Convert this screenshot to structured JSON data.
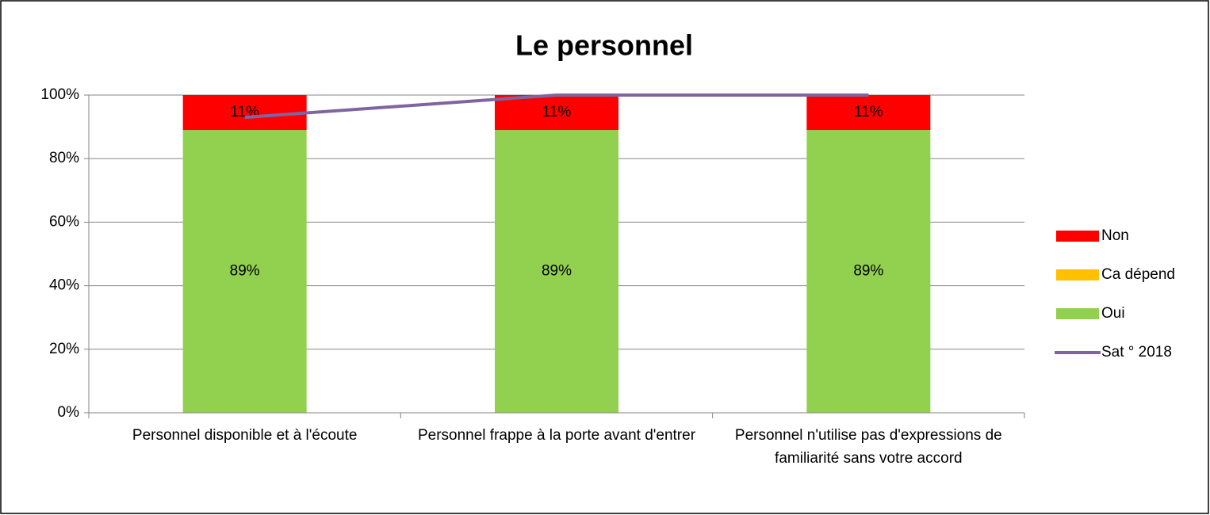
{
  "chart_data": {
    "type": "bar",
    "stacked": true,
    "title": "Le personnel",
    "categories": [
      "Personnel disponible et à l'écoute",
      "Personnel frappe à la porte avant d'entrer",
      "Personnel n'utilise pas d'expressions de familiarité sans votre accord"
    ],
    "series": [
      {
        "name": "Oui",
        "type": "bar",
        "color": "#92d050",
        "values": [
          89,
          89,
          89
        ],
        "value_labels": [
          "89%",
          "89%",
          "89%"
        ]
      },
      {
        "name": "Ca dépend",
        "type": "bar",
        "color": "#ffc000",
        "values": [
          0,
          0,
          0
        ]
      },
      {
        "name": "Non",
        "type": "bar",
        "color": "#ff0000",
        "values": [
          11,
          11,
          11
        ],
        "value_labels": [
          "11%",
          "11%",
          "11%"
        ]
      },
      {
        "name": "Sat ° 2018",
        "type": "line",
        "color": "#8064a2",
        "values": [
          93,
          100,
          100
        ]
      }
    ],
    "ylim": [
      0,
      100
    ],
    "yticks": [
      {
        "value": 0,
        "label": "0%"
      },
      {
        "value": 20,
        "label": "20%"
      },
      {
        "value": 40,
        "label": "40%"
      },
      {
        "value": 60,
        "label": "60%"
      },
      {
        "value": 80,
        "label": "80%"
      },
      {
        "value": 100,
        "label": "100%"
      }
    ],
    "grid": true,
    "legend": "right"
  }
}
